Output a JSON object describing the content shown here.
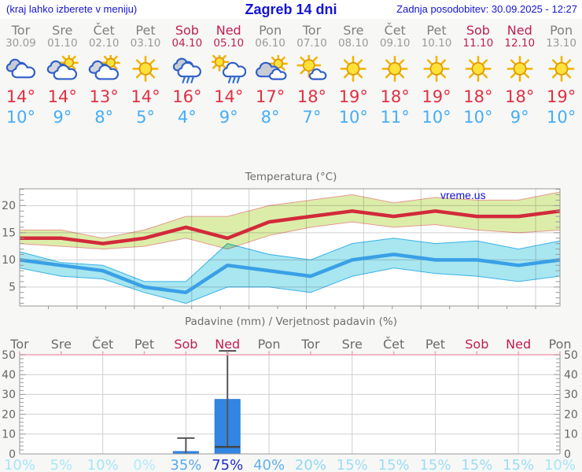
{
  "header": {
    "left_note": "(kraj lahko izberete v meniju)",
    "title": "Zagreb 14 dni",
    "updated": "Zadnja posodobitev: 30.09.2025 - 12:27"
  },
  "days": [
    {
      "name": "Tor",
      "date": "30.09",
      "weekend": false,
      "icon": "cloudy",
      "tmax": "14°",
      "tmin": "10°"
    },
    {
      "name": "Sre",
      "date": "01.10",
      "weekend": false,
      "icon": "partly-sunny",
      "tmax": "14°",
      "tmin": "9°"
    },
    {
      "name": "Čet",
      "date": "02.10",
      "weekend": false,
      "icon": "partly-sunny",
      "tmax": "13°",
      "tmin": "8°"
    },
    {
      "name": "Pet",
      "date": "03.10",
      "weekend": false,
      "icon": "sunny",
      "tmax": "14°",
      "tmin": "5°"
    },
    {
      "name": "Sob",
      "date": "04.10",
      "weekend": true,
      "icon": "rain",
      "tmax": "16°",
      "tmin": "4°"
    },
    {
      "name": "Ned",
      "date": "05.10",
      "weekend": true,
      "icon": "sun-shower",
      "tmax": "14°",
      "tmin": "9°"
    },
    {
      "name": "Pon",
      "date": "06.10",
      "weekend": false,
      "icon": "partly-cloudy",
      "tmax": "17°",
      "tmin": "8°"
    },
    {
      "name": "Tor",
      "date": "07.10",
      "weekend": false,
      "icon": "sun-small-cloud",
      "tmax": "18°",
      "tmin": "7°"
    },
    {
      "name": "Sre",
      "date": "08.10",
      "weekend": false,
      "icon": "sunny",
      "tmax": "19°",
      "tmin": "10°"
    },
    {
      "name": "Čet",
      "date": "09.10",
      "weekend": false,
      "icon": "sunny",
      "tmax": "18°",
      "tmin": "11°"
    },
    {
      "name": "Pet",
      "date": "10.10",
      "weekend": false,
      "icon": "sunny",
      "tmax": "19°",
      "tmin": "10°"
    },
    {
      "name": "Sob",
      "date": "11.10",
      "weekend": true,
      "icon": "sunny",
      "tmax": "18°",
      "tmin": "10°"
    },
    {
      "name": "Ned",
      "date": "12.10",
      "weekend": true,
      "icon": "sunny",
      "tmax": "18°",
      "tmin": "9°"
    },
    {
      "name": "Pon",
      "date": "13.10",
      "weekend": false,
      "icon": "sunny",
      "tmax": "19°",
      "tmin": "10°"
    }
  ],
  "colors": {
    "header_blue": "#1414d2",
    "tmax_red": "#e03043",
    "tmin_blue": "#45aef5",
    "weekend": "#c01d56",
    "weekday": "#808080",
    "grid": "#d0d0d0",
    "axis": "#999999",
    "tick_label": "#666666",
    "red_line": "#d22a3a",
    "green_band": "#dcedaa",
    "green_band_edge": "#e59a8f",
    "blue_line": "#3aa0e6",
    "cyan_band": "#a8e6f0",
    "cyan_band_edge": "#3ab2e6",
    "bar_fill": "#3286e3",
    "bar_edge": "#2b79d4",
    "whisker": "#555555",
    "pink_axis": "#f0a0b8"
  },
  "chart_data": [
    {
      "type": "line",
      "title": "Temperatura (°C)",
      "watermark": "vreme.us",
      "x_labels": [
        "Tor 30.09",
        "Sre 01.10",
        "Čet 02.10",
        "Pet 03.10",
        "Sob 04.10",
        "Ned 05.10",
        "Pon 06.10",
        "Tor 07.10",
        "Sre 08.10",
        "Čet 09.10",
        "Pet 10.10",
        "Sob 11.10",
        "Ned 12.10",
        "Pon 13.10"
      ],
      "yticks": [
        5,
        10,
        15,
        20
      ],
      "ylim": [
        1.5,
        23.1
      ],
      "grid": true,
      "series": [
        {
          "name": "max-temperature",
          "color": "#d22a3a",
          "values": [
            14,
            14,
            13,
            14,
            16,
            14,
            17,
            18,
            19,
            18,
            19,
            18,
            18,
            19
          ]
        },
        {
          "name": "min-temperature",
          "color": "#3aa0e6",
          "values": [
            10,
            9,
            8,
            5,
            4,
            9,
            8,
            7,
            10,
            11,
            10,
            10,
            9,
            10
          ]
        }
      ],
      "bands": [
        {
          "name": "max-range",
          "high": [
            15.5,
            15.5,
            14,
            15.5,
            18,
            18,
            20,
            21,
            22,
            20.5,
            21.5,
            21,
            21,
            22.5
          ],
          "low": [
            13,
            12.5,
            12,
            12.5,
            14,
            12,
            14.5,
            16,
            17,
            16,
            16.5,
            15.5,
            15,
            15.5
          ]
        },
        {
          "name": "min-range",
          "high": [
            11.5,
            9.5,
            9,
            6,
            6,
            13,
            11,
            10,
            13,
            14,
            13,
            13.5,
            12,
            13.5
          ],
          "low": [
            8.5,
            7,
            6.5,
            4,
            2,
            5,
            5,
            4,
            7,
            8.5,
            7.5,
            7,
            6,
            7
          ]
        }
      ]
    },
    {
      "type": "bar",
      "title": "Padavine (mm) / Verjetnost padavin (%)",
      "categories": [
        "Tor",
        "Sre",
        "Čet",
        "Pet",
        "Sob",
        "Ned",
        "Pon",
        "Tor",
        "Sre",
        "Čet",
        "Pet",
        "Sob",
        "Ned",
        "Pon"
      ],
      "values": [
        0,
        0,
        0,
        0,
        1.2,
        27.5,
        0,
        0,
        0,
        0,
        0,
        0,
        0,
        0
      ],
      "range_low": [
        0,
        0,
        0,
        0,
        0,
        3.5,
        0,
        0,
        0,
        0,
        0,
        0,
        0,
        0
      ],
      "range_high": [
        0,
        0,
        0,
        0,
        8,
        52,
        0,
        0,
        0,
        0,
        0,
        0,
        0,
        0
      ],
      "probabilities": [
        "10%",
        "5%",
        "10%",
        "0%",
        "35%",
        "75%",
        "40%",
        "20%",
        "15%",
        "15%",
        "15%",
        "15%",
        "15%",
        "10%"
      ],
      "prob_colors": [
        "#a6e6f8",
        "#aae8f8",
        "#a6e6f8",
        "#b3ebfa",
        "#58a9e9",
        "#1c2fc3",
        "#63b1ec",
        "#8fd8f2",
        "#9adef5",
        "#9adef5",
        "#9adef5",
        "#9adef5",
        "#9adef5",
        "#a6e6f8"
      ],
      "yticks": [
        0,
        10,
        20,
        30,
        40,
        50
      ],
      "ylim": [
        0,
        50
      ],
      "grid": true
    }
  ]
}
